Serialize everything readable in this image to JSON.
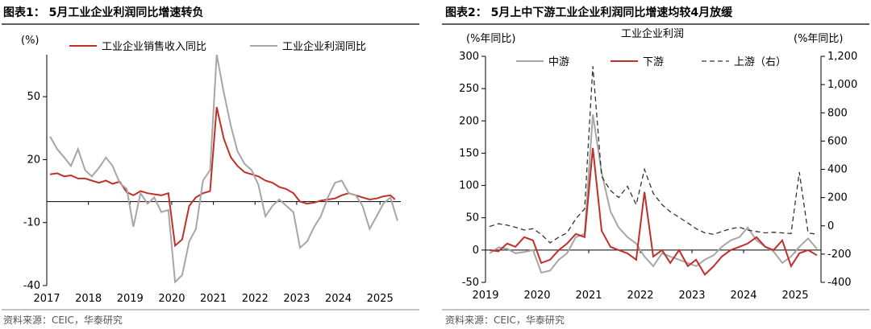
{
  "chart_data": [
    {
      "type": "line",
      "title": "图表1： 5月工业企业利润同比增速转负",
      "source": "资料来源：CEIC，华泰研究",
      "ylabel": "(%)",
      "ylim": [
        -40,
        70
      ],
      "yticks": [
        -40,
        -10,
        20,
        50
      ],
      "xlim": [
        2017.0,
        2025.5
      ],
      "xticks": [
        "2017",
        "2018",
        "2019",
        "2020",
        "2021",
        "2022",
        "2023",
        "2024",
        "2025"
      ],
      "baseline": 0,
      "legend": "top",
      "series": [
        {
          "name": "工业企业销售收入同比",
          "color": "#c0302b",
          "points": [
            [
              2017.08,
              13
            ],
            [
              2017.25,
              13.5
            ],
            [
              2017.42,
              12
            ],
            [
              2017.58,
              12.5
            ],
            [
              2017.75,
              11
            ],
            [
              2017.92,
              11
            ],
            [
              2018.08,
              10
            ],
            [
              2018.25,
              9
            ],
            [
              2018.42,
              10
            ],
            [
              2018.58,
              8.5
            ],
            [
              2018.75,
              9.5
            ],
            [
              2018.92,
              4.5
            ],
            [
              2019.08,
              3
            ],
            [
              2019.25,
              5
            ],
            [
              2019.42,
              4
            ],
            [
              2019.58,
              3.5
            ],
            [
              2019.75,
              3
            ],
            [
              2019.92,
              4
            ],
            [
              2020.08,
              -21
            ],
            [
              2020.25,
              -18
            ],
            [
              2020.42,
              -2
            ],
            [
              2020.58,
              2
            ],
            [
              2020.75,
              4
            ],
            [
              2020.92,
              5
            ],
            [
              2021.08,
              45
            ],
            [
              2021.25,
              30
            ],
            [
              2021.42,
              21
            ],
            [
              2021.58,
              17
            ],
            [
              2021.75,
              14
            ],
            [
              2021.92,
              13
            ],
            [
              2022.08,
              12
            ],
            [
              2022.25,
              10
            ],
            [
              2022.42,
              9
            ],
            [
              2022.58,
              7
            ],
            [
              2022.75,
              6
            ],
            [
              2022.92,
              4
            ],
            [
              2023.08,
              0
            ],
            [
              2023.25,
              -1
            ],
            [
              2023.42,
              -0.5
            ],
            [
              2023.58,
              0.5
            ],
            [
              2023.75,
              1
            ],
            [
              2023.92,
              1.5
            ],
            [
              2024.08,
              3
            ],
            [
              2024.25,
              4
            ],
            [
              2024.42,
              3
            ],
            [
              2024.58,
              2
            ],
            [
              2024.75,
              1
            ],
            [
              2024.92,
              1.5
            ],
            [
              2025.08,
              2.5
            ],
            [
              2025.25,
              3
            ],
            [
              2025.36,
              1
            ]
          ]
        },
        {
          "name": "工业企业利润同比",
          "color": "#a6a6a6",
          "points": [
            [
              2017.08,
              31
            ],
            [
              2017.25,
              25
            ],
            [
              2017.42,
              21
            ],
            [
              2017.58,
              17
            ],
            [
              2017.75,
              25
            ],
            [
              2017.92,
              15
            ],
            [
              2018.08,
              12
            ],
            [
              2018.25,
              16
            ],
            [
              2018.42,
              21
            ],
            [
              2018.58,
              17
            ],
            [
              2018.75,
              9
            ],
            [
              2018.92,
              6
            ],
            [
              2019.08,
              -12
            ],
            [
              2019.25,
              4
            ],
            [
              2019.42,
              -1
            ],
            [
              2019.58,
              2
            ],
            [
              2019.75,
              -5
            ],
            [
              2019.92,
              -4
            ],
            [
              2020.08,
              -38.3
            ],
            [
              2020.25,
              -35
            ],
            [
              2020.42,
              -19
            ],
            [
              2020.58,
              -13
            ],
            [
              2020.75,
              10
            ],
            [
              2020.92,
              15
            ],
            [
              2021.08,
              70
            ],
            [
              2021.25,
              52
            ],
            [
              2021.42,
              36
            ],
            [
              2021.58,
              24
            ],
            [
              2021.75,
              18
            ],
            [
              2021.92,
              15
            ],
            [
              2022.08,
              8
            ],
            [
              2022.25,
              -7
            ],
            [
              2022.42,
              -2
            ],
            [
              2022.58,
              1
            ],
            [
              2022.75,
              -2
            ],
            [
              2022.92,
              -5
            ],
            [
              2023.08,
              -22
            ],
            [
              2023.25,
              -19
            ],
            [
              2023.42,
              -12
            ],
            [
              2023.58,
              -7
            ],
            [
              2023.75,
              2
            ],
            [
              2023.92,
              9
            ],
            [
              2024.08,
              10
            ],
            [
              2024.25,
              4
            ],
            [
              2024.42,
              3
            ],
            [
              2024.58,
              -2
            ],
            [
              2024.75,
              -13
            ],
            [
              2024.92,
              -7
            ],
            [
              2025.08,
              -1
            ],
            [
              2025.25,
              2
            ],
            [
              2025.42,
              -9.1
            ]
          ]
        }
      ]
    },
    {
      "type": "line",
      "title": "图表2： 5月上中下游工业企业利润同比增速均较4月放缓",
      "subtitle": "工业企业利润",
      "source": "资料来源：CEIC，华泰研究",
      "ylabel": "(%年同比)",
      "ylabel_right": "(%年同比)",
      "ylim": [
        -50,
        300
      ],
      "yticks": [
        -50,
        0,
        50,
        100,
        150,
        200,
        250,
        300
      ],
      "ylim_right": [
        -400,
        1200
      ],
      "yticks_right": [
        "-400",
        "-200",
        "0",
        "200",
        "400",
        "600",
        "800",
        "1,000",
        "1,200"
      ],
      "xlim": [
        2019.0,
        2025.5
      ],
      "xticks": [
        "2019",
        "2020",
        "2021",
        "2022",
        "2023",
        "2024",
        "2025"
      ],
      "baseline": 0,
      "legend": "top",
      "series": [
        {
          "name": "中游",
          "color": "#a6a6a6",
          "axis": "left",
          "points": [
            [
              2019.08,
              -5
            ],
            [
              2019.25,
              4
            ],
            [
              2019.42,
              2
            ],
            [
              2019.58,
              -5
            ],
            [
              2019.75,
              -3
            ],
            [
              2019.92,
              0
            ],
            [
              2020.08,
              -35
            ],
            [
              2020.25,
              -32
            ],
            [
              2020.42,
              -15
            ],
            [
              2020.58,
              -5
            ],
            [
              2020.75,
              20
            ],
            [
              2020.92,
              25
            ],
            [
              2021.08,
              210
            ],
            [
              2021.25,
              120
            ],
            [
              2021.42,
              60
            ],
            [
              2021.58,
              35
            ],
            [
              2021.75,
              20
            ],
            [
              2021.92,
              10
            ],
            [
              2022.08,
              -10
            ],
            [
              2022.25,
              -25
            ],
            [
              2022.42,
              -5
            ],
            [
              2022.58,
              -10
            ],
            [
              2022.75,
              -15
            ],
            [
              2022.92,
              -20
            ],
            [
              2023.08,
              -25
            ],
            [
              2023.25,
              -15
            ],
            [
              2023.42,
              -8
            ],
            [
              2023.58,
              5
            ],
            [
              2023.75,
              15
            ],
            [
              2023.92,
              20
            ],
            [
              2024.08,
              35
            ],
            [
              2024.25,
              15
            ],
            [
              2024.42,
              5
            ],
            [
              2024.58,
              -2
            ],
            [
              2024.75,
              -20
            ],
            [
              2024.92,
              -10
            ],
            [
              2025.08,
              5
            ],
            [
              2025.25,
              18
            ],
            [
              2025.42,
              2
            ]
          ]
        },
        {
          "name": "下游",
          "color": "#c0302b",
          "axis": "left",
          "points": [
            [
              2019.08,
              0
            ],
            [
              2019.25,
              -2
            ],
            [
              2019.42,
              10
            ],
            [
              2019.58,
              5
            ],
            [
              2019.75,
              20
            ],
            [
              2019.92,
              15
            ],
            [
              2020.08,
              -20
            ],
            [
              2020.25,
              -15
            ],
            [
              2020.42,
              0
            ],
            [
              2020.58,
              10
            ],
            [
              2020.75,
              25
            ],
            [
              2020.92,
              20
            ],
            [
              2021.08,
              158
            ],
            [
              2021.25,
              30
            ],
            [
              2021.42,
              5
            ],
            [
              2021.58,
              0
            ],
            [
              2021.75,
              -5
            ],
            [
              2021.92,
              -15
            ],
            [
              2022.08,
              90
            ],
            [
              2022.25,
              -10
            ],
            [
              2022.42,
              0
            ],
            [
              2022.58,
              -20
            ],
            [
              2022.75,
              0
            ],
            [
              2022.92,
              -25
            ],
            [
              2023.08,
              -15
            ],
            [
              2023.25,
              -38
            ],
            [
              2023.42,
              -25
            ],
            [
              2023.58,
              -10
            ],
            [
              2023.75,
              0
            ],
            [
              2023.92,
              5
            ],
            [
              2024.08,
              10
            ],
            [
              2024.25,
              20
            ],
            [
              2024.42,
              5
            ],
            [
              2024.58,
              0
            ],
            [
              2024.75,
              15
            ],
            [
              2024.92,
              -25
            ],
            [
              2025.08,
              -5
            ],
            [
              2025.25,
              0
            ],
            [
              2025.42,
              -8
            ]
          ]
        },
        {
          "name": "上游（右）",
          "color": "#333333",
          "axis": "right",
          "dash": true,
          "points": [
            [
              2019.08,
              -5
            ],
            [
              2019.25,
              15
            ],
            [
              2019.42,
              5
            ],
            [
              2019.58,
              -10
            ],
            [
              2019.75,
              -30
            ],
            [
              2019.92,
              -20
            ],
            [
              2020.08,
              -60
            ],
            [
              2020.25,
              -120
            ],
            [
              2020.42,
              -80
            ],
            [
              2020.58,
              -50
            ],
            [
              2020.75,
              50
            ],
            [
              2020.92,
              120
            ],
            [
              2021.08,
              1130
            ],
            [
              2021.25,
              350
            ],
            [
              2021.42,
              250
            ],
            [
              2021.58,
              200
            ],
            [
              2021.75,
              280
            ],
            [
              2021.92,
              150
            ],
            [
              2022.08,
              400
            ],
            [
              2022.25,
              230
            ],
            [
              2022.42,
              150
            ],
            [
              2022.58,
              100
            ],
            [
              2022.75,
              60
            ],
            [
              2022.92,
              20
            ],
            [
              2023.08,
              -20
            ],
            [
              2023.25,
              -50
            ],
            [
              2023.42,
              -60
            ],
            [
              2023.58,
              -40
            ],
            [
              2023.75,
              -20
            ],
            [
              2023.92,
              -10
            ],
            [
              2024.08,
              -30
            ],
            [
              2024.25,
              -40
            ],
            [
              2024.42,
              -50
            ],
            [
              2024.58,
              -45
            ],
            [
              2024.75,
              -50
            ],
            [
              2024.92,
              -55
            ],
            [
              2025.08,
              380
            ],
            [
              2025.25,
              -50
            ],
            [
              2025.42,
              -60
            ]
          ]
        }
      ]
    }
  ]
}
